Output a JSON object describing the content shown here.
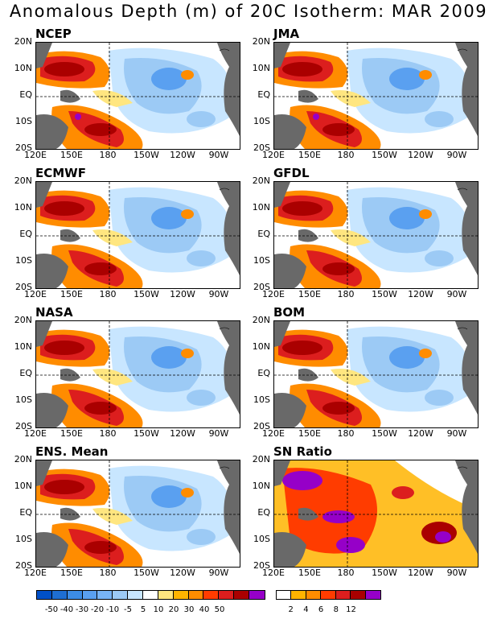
{
  "title": "Anomalous Depth (m) of 20C Isotherm: MAR 2009",
  "panels": [
    {
      "name": "NCEP"
    },
    {
      "name": "JMA"
    },
    {
      "name": "ECMWF"
    },
    {
      "name": "GFDL"
    },
    {
      "name": "NASA"
    },
    {
      "name": "BOM"
    },
    {
      "name": "ENS. Mean"
    },
    {
      "name": "SN Ratio"
    }
  ],
  "lat_labels": [
    "20N",
    "10N",
    "EQ",
    "10S",
    "20S"
  ],
  "lon_labels": [
    "120E",
    "150E",
    "180",
    "150W",
    "120W",
    "90W"
  ],
  "colors": {
    "land": "#696969",
    "dark_blue": "#1e6ed2",
    "mid_blue": "#5aa0f0",
    "light_blue": "#9ccaf5",
    "pale_blue": "#c8e6ff",
    "pale_yellow": "#ffe680",
    "light_orange": "#ffb400",
    "orange": "#ff8c00",
    "red_orange": "#ff3c00",
    "red": "#dc1e1e",
    "dark_red": "#aa0000",
    "purple": "#9600c8"
  },
  "colorbar_anomaly": {
    "labels": [
      "-50",
      "-40",
      "-30",
      "-20",
      "-10",
      "-5",
      "5",
      "10",
      "20",
      "30",
      "40",
      "50"
    ],
    "colors": [
      "#0050c8",
      "#1e6ed2",
      "#3c8ce6",
      "#5aa0f0",
      "#78b4f5",
      "#9ccaf5",
      "#c8e6ff",
      "#ffffff",
      "#ffe680",
      "#ffb400",
      "#ff8c00",
      "#ff3c00",
      "#dc1e1e",
      "#aa0000",
      "#9600c8"
    ]
  },
  "colorbar_sn": {
    "labels": [
      "2",
      "4",
      "6",
      "8",
      "12"
    ],
    "colors": [
      "#ffffff",
      "#ffb400",
      "#ff8c00",
      "#ff3c00",
      "#dc1e1e",
      "#aa0000",
      "#9600c8"
    ]
  }
}
